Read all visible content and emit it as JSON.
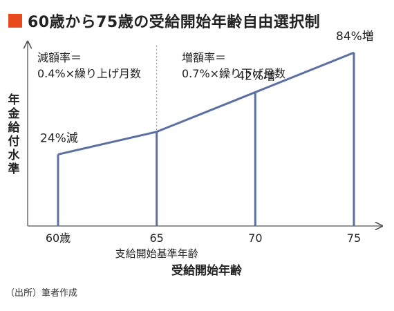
{
  "title": "60歳から75歳の受給開始年齢自由選択制",
  "source": "（出所）筆者作成",
  "colors": {
    "title_marker": "#e8491d",
    "line": "#5b6fa1",
    "axis": "#555555",
    "divider": "#888888"
  },
  "chart_data": {
    "type": "line",
    "xlabel": "受給開始年齢",
    "ylabel": "年金給付水準",
    "x_ticks": [
      {
        "value": 60,
        "label": "60歳"
      },
      {
        "value": 65,
        "label": "65"
      },
      {
        "value": 70,
        "label": "70"
      },
      {
        "value": 75,
        "label": "75"
      }
    ],
    "x_sublabel": {
      "value": 65,
      "text": "支給開始基準年齢"
    },
    "xlim": [
      59,
      76
    ],
    "ylim": [
      0,
      190
    ],
    "series": [
      {
        "points": [
          {
            "x": 60,
            "y": 76
          },
          {
            "x": 65,
            "y": 100
          },
          {
            "x": 70,
            "y": 142
          },
          {
            "x": 75,
            "y": 184
          }
        ]
      }
    ],
    "point_labels": [
      {
        "x": 60,
        "text": "24%減"
      },
      {
        "x": 70,
        "text": "42%増"
      },
      {
        "x": 75,
        "text": "84%増"
      }
    ],
    "annotations": [
      {
        "side": "left",
        "line1": "減額率＝",
        "line2": "0.4%×繰り上げ月数"
      },
      {
        "side": "right",
        "line1": "増額率＝",
        "line2": "0.7%×繰り下げ月数"
      }
    ],
    "divider_x": 65,
    "grid": false,
    "legend": "none"
  }
}
